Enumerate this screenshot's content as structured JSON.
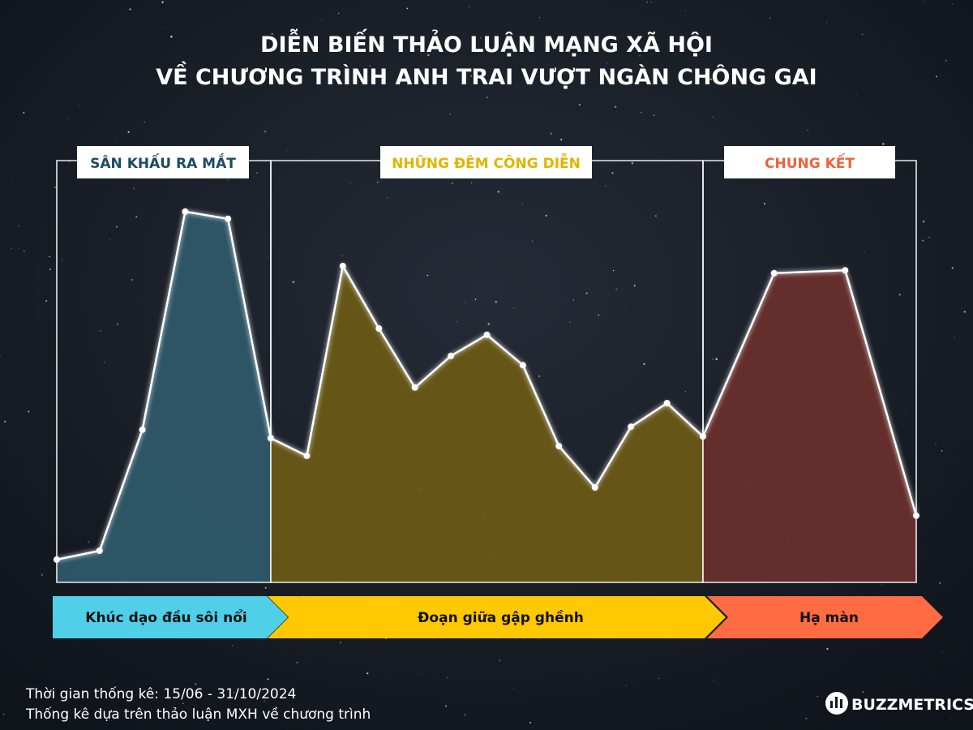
{
  "chart_data": {
    "type": "area",
    "title": [
      "DIỄN BIẾN THẢO LUẬN MẠNG XÃ HỘI",
      "VỀ CHƯƠNG TRÌNH ANH TRAI VƯỢT NGÀN CHÔNG GAI"
    ],
    "ylim": [
      0,
      100
    ],
    "series": [
      {
        "name": "SÂN KHẤU RA MẮT",
        "stage": "Khúc dạo đầu sôi nổi",
        "color": "#2f5a6b",
        "label_color": "#1d4a66",
        "arrow_color": "#4fd0e8",
        "values": [
          5.4,
          7.5,
          36.2,
          87.9,
          86.2,
          34.2
        ]
      },
      {
        "name": "NHỮNG ĐÊM CÔNG DIỄN",
        "stage": "Đoạn giữa gập ghềnh",
        "color": "#6b5a16",
        "label_color": "#e2b400",
        "arrow_color": "#ffc800",
        "values": [
          34.2,
          30.0,
          75.0,
          60.2,
          46.2,
          53.7,
          58.7,
          51.5,
          32.3,
          22.5,
          36.9,
          42.5,
          34.6
        ]
      },
      {
        "name": "CHUNG KẾT",
        "stage": "Hạ màn",
        "color": "#6a302c",
        "label_color": "#f0623a",
        "arrow_color": "#ff6b42",
        "values": [
          34.6,
          73.3,
          74.0,
          15.8
        ]
      }
    ],
    "notes": [
      "Thời gian thống kê: 15/06 - 31/10/2024",
      "Thống kê dựa trên thảo luận MXH về chương trình"
    ],
    "brand": "BUZZMETRICS"
  }
}
